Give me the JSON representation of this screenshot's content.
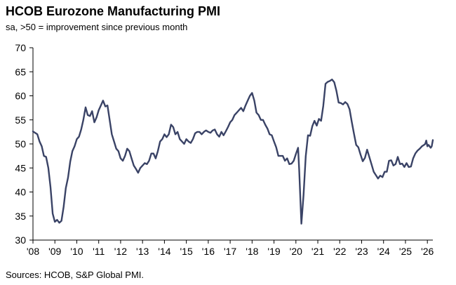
{
  "chart_data": {
    "type": "line",
    "title": "HCOB Eurozone Manufacturing PMI",
    "subtitle": "sa, >50 = improvement since previous month",
    "source": "Sources: HCOB, S&P Global PMI.",
    "xlabel": "",
    "ylabel": "",
    "ylim": [
      30,
      70
    ],
    "xlim": [
      2008.0,
      2026.25
    ],
    "yticks": [
      30,
      35,
      40,
      45,
      50,
      55,
      60,
      65,
      70
    ],
    "ytick_labels": [
      "30",
      "35",
      "40",
      "45",
      "50",
      "55",
      "60",
      "65",
      "70"
    ],
    "xtick_labels": [
      "'08",
      "'09",
      "'10",
      "'11",
      "'12",
      "'13",
      "'14",
      "'15",
      "'16",
      "'17",
      "'18",
      "'19",
      "'20",
      "'21",
      "'22",
      "'23",
      "'24",
      "'25",
      "'26"
    ],
    "xtick_years": [
      2008,
      2009,
      2010,
      2011,
      2012,
      2013,
      2014,
      2015,
      2016,
      2017,
      2018,
      2019,
      2020,
      2021,
      2022,
      2023,
      2024,
      2025,
      2026
    ],
    "grid": false,
    "series": [
      {
        "name": "HCOB Eurozone Manufacturing PMI",
        "color": "#3a4366",
        "points": [
          [
            2008.0,
            52.6
          ],
          [
            2008.1,
            52.3
          ],
          [
            2008.2,
            52.0
          ],
          [
            2008.3,
            50.5
          ],
          [
            2008.4,
            49.5
          ],
          [
            2008.5,
            47.5
          ],
          [
            2008.6,
            47.3
          ],
          [
            2008.7,
            45.0
          ],
          [
            2008.8,
            41.0
          ],
          [
            2008.9,
            35.5
          ],
          [
            2009.0,
            33.8
          ],
          [
            2009.1,
            34.2
          ],
          [
            2009.2,
            33.6
          ],
          [
            2009.3,
            34.0
          ],
          [
            2009.4,
            36.9
          ],
          [
            2009.5,
            40.8
          ],
          [
            2009.6,
            43.0
          ],
          [
            2009.7,
            46.3
          ],
          [
            2009.8,
            48.5
          ],
          [
            2009.9,
            49.5
          ],
          [
            2010.0,
            51.0
          ],
          [
            2010.1,
            51.5
          ],
          [
            2010.2,
            53.0
          ],
          [
            2010.3,
            55.0
          ],
          [
            2010.4,
            57.6
          ],
          [
            2010.5,
            56.0
          ],
          [
            2010.6,
            55.8
          ],
          [
            2010.7,
            56.8
          ],
          [
            2010.8,
            54.5
          ],
          [
            2010.9,
            55.5
          ],
          [
            2011.0,
            57.0
          ],
          [
            2011.1,
            58.0
          ],
          [
            2011.2,
            59.0
          ],
          [
            2011.3,
            57.8
          ],
          [
            2011.4,
            58.0
          ],
          [
            2011.5,
            55.0
          ],
          [
            2011.6,
            52.0
          ],
          [
            2011.7,
            50.5
          ],
          [
            2011.8,
            49.0
          ],
          [
            2011.9,
            48.5
          ],
          [
            2012.0,
            47.0
          ],
          [
            2012.1,
            46.5
          ],
          [
            2012.2,
            47.5
          ],
          [
            2012.3,
            49.0
          ],
          [
            2012.4,
            48.5
          ],
          [
            2012.5,
            47.0
          ],
          [
            2012.6,
            45.5
          ],
          [
            2012.7,
            44.8
          ],
          [
            2012.8,
            44.0
          ],
          [
            2012.9,
            45.0
          ],
          [
            2013.0,
            45.5
          ],
          [
            2013.1,
            46.0
          ],
          [
            2013.2,
            45.8
          ],
          [
            2013.3,
            46.5
          ],
          [
            2013.4,
            48.0
          ],
          [
            2013.5,
            48.0
          ],
          [
            2013.6,
            47.0
          ],
          [
            2013.7,
            48.5
          ],
          [
            2013.8,
            50.5
          ],
          [
            2013.9,
            51.0
          ],
          [
            2014.0,
            52.0
          ],
          [
            2014.1,
            51.4
          ],
          [
            2014.2,
            52.0
          ],
          [
            2014.3,
            54.0
          ],
          [
            2014.4,
            53.5
          ],
          [
            2014.5,
            52.0
          ],
          [
            2014.6,
            52.5
          ],
          [
            2014.7,
            51.0
          ],
          [
            2014.8,
            50.5
          ],
          [
            2014.9,
            50.0
          ],
          [
            2015.0,
            51.0
          ],
          [
            2015.1,
            50.5
          ],
          [
            2015.2,
            50.2
          ],
          [
            2015.3,
            51.0
          ],
          [
            2015.4,
            52.2
          ],
          [
            2015.5,
            52.5
          ],
          [
            2015.6,
            52.5
          ],
          [
            2015.7,
            52.0
          ],
          [
            2015.8,
            52.5
          ],
          [
            2015.9,
            52.8
          ],
          [
            2016.0,
            52.5
          ],
          [
            2016.1,
            52.3
          ],
          [
            2016.2,
            52.8
          ],
          [
            2016.3,
            53.0
          ],
          [
            2016.4,
            52.0
          ],
          [
            2016.5,
            51.5
          ],
          [
            2016.6,
            52.5
          ],
          [
            2016.7,
            51.8
          ],
          [
            2016.8,
            52.6
          ],
          [
            2016.9,
            53.5
          ],
          [
            2017.0,
            54.5
          ],
          [
            2017.1,
            55.0
          ],
          [
            2017.2,
            56.0
          ],
          [
            2017.3,
            56.5
          ],
          [
            2017.4,
            57.0
          ],
          [
            2017.5,
            57.5
          ],
          [
            2017.6,
            56.8
          ],
          [
            2017.7,
            58.0
          ],
          [
            2017.8,
            59.0
          ],
          [
            2017.9,
            60.0
          ],
          [
            2018.0,
            60.6
          ],
          [
            2018.1,
            59.0
          ],
          [
            2018.2,
            56.5
          ],
          [
            2018.3,
            56.0
          ],
          [
            2018.4,
            55.0
          ],
          [
            2018.5,
            55.0
          ],
          [
            2018.6,
            54.0
          ],
          [
            2018.7,
            53.2
          ],
          [
            2018.8,
            52.0
          ],
          [
            2018.9,
            51.8
          ],
          [
            2019.0,
            50.5
          ],
          [
            2019.1,
            49.3
          ],
          [
            2019.2,
            47.5
          ],
          [
            2019.3,
            47.5
          ],
          [
            2019.4,
            47.5
          ],
          [
            2019.5,
            46.5
          ],
          [
            2019.6,
            47.0
          ],
          [
            2019.7,
            45.8
          ],
          [
            2019.8,
            45.9
          ],
          [
            2019.9,
            46.5
          ],
          [
            2020.0,
            47.9
          ],
          [
            2020.1,
            49.2
          ],
          [
            2020.15,
            44.5
          ],
          [
            2020.25,
            33.4
          ],
          [
            2020.35,
            39.4
          ],
          [
            2020.45,
            47.4
          ],
          [
            2020.55,
            51.8
          ],
          [
            2020.65,
            51.7
          ],
          [
            2020.75,
            53.7
          ],
          [
            2020.85,
            54.8
          ],
          [
            2020.95,
            53.8
          ],
          [
            2021.05,
            55.2
          ],
          [
            2021.15,
            54.8
          ],
          [
            2021.25,
            57.9
          ],
          [
            2021.35,
            62.5
          ],
          [
            2021.45,
            62.9
          ],
          [
            2021.55,
            63.1
          ],
          [
            2021.65,
            63.4
          ],
          [
            2021.75,
            62.8
          ],
          [
            2021.85,
            61.0
          ],
          [
            2021.95,
            58.6
          ],
          [
            2022.05,
            58.5
          ],
          [
            2022.15,
            58.2
          ],
          [
            2022.25,
            58.7
          ],
          [
            2022.35,
            58.3
          ],
          [
            2022.45,
            57.2
          ],
          [
            2022.55,
            54.6
          ],
          [
            2022.65,
            52.1
          ],
          [
            2022.75,
            49.8
          ],
          [
            2022.85,
            49.3
          ],
          [
            2022.95,
            47.8
          ],
          [
            2023.05,
            46.4
          ],
          [
            2023.15,
            47.1
          ],
          [
            2023.25,
            48.8
          ],
          [
            2023.35,
            47.3
          ],
          [
            2023.45,
            45.8
          ],
          [
            2023.55,
            44.2
          ],
          [
            2023.65,
            43.5
          ],
          [
            2023.75,
            42.8
          ],
          [
            2023.85,
            43.4
          ],
          [
            2023.95,
            43.1
          ],
          [
            2024.05,
            44.2
          ],
          [
            2024.15,
            44.2
          ],
          [
            2024.25,
            46.5
          ],
          [
            2024.35,
            46.6
          ],
          [
            2024.45,
            45.5
          ],
          [
            2024.55,
            45.8
          ],
          [
            2024.65,
            47.3
          ],
          [
            2024.75,
            45.8
          ],
          [
            2024.85,
            45.9
          ],
          [
            2024.95,
            45.2
          ],
          [
            2025.05,
            46.0
          ],
          [
            2025.15,
            45.2
          ],
          [
            2025.25,
            45.3
          ],
          [
            2025.35,
            47.0
          ],
          [
            2025.45,
            48.0
          ],
          [
            2025.55,
            48.6
          ],
          [
            2025.65,
            49.0
          ],
          [
            2025.75,
            49.5
          ],
          [
            2025.85,
            49.8
          ],
          [
            2025.9,
            50.0
          ],
          [
            2025.95,
            50.7
          ],
          [
            2026.0,
            49.5
          ],
          [
            2026.05,
            49.8
          ],
          [
            2026.1,
            49.5
          ],
          [
            2026.15,
            49.2
          ],
          [
            2026.2,
            49.5
          ],
          [
            2026.25,
            50.8
          ]
        ]
      }
    ]
  }
}
